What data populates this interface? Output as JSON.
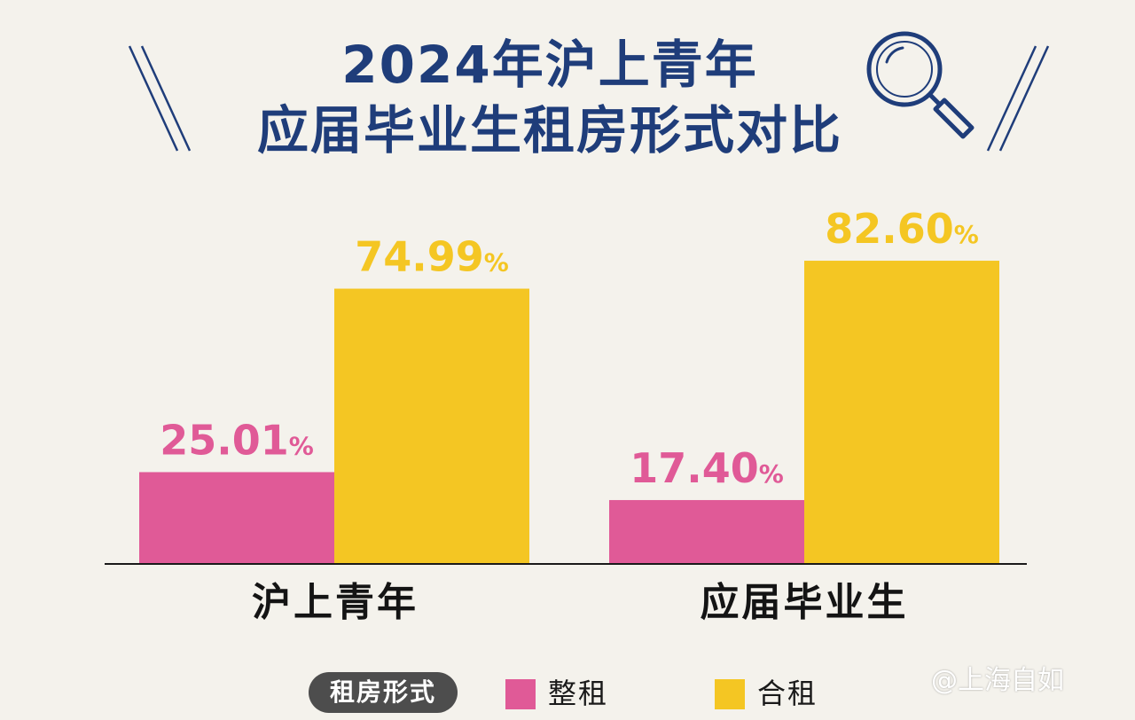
{
  "title": {
    "line1": "2024年沪上青年",
    "line2": "应届毕业生租房形式对比"
  },
  "colors": {
    "title": "#1f3d7a",
    "whole_rent": "#e05a97",
    "shared_rent": "#f4c623",
    "background": "#f4f2ec"
  },
  "icons": {
    "magnifier": "magnifier-icon"
  },
  "legend": {
    "title": "租房形式",
    "items": [
      {
        "label": "整租",
        "color": "#e05a97"
      },
      {
        "label": "合租",
        "color": "#f4c623"
      }
    ]
  },
  "watermark": "@上海自如",
  "chart_data": {
    "type": "bar",
    "title": "2024年沪上青年 应届毕业生租房形式对比",
    "categories": [
      "沪上青年",
      "应届毕业生"
    ],
    "series": [
      {
        "name": "整租",
        "values": [
          25.01,
          17.4
        ],
        "labels": [
          "25.01",
          "17.40"
        ],
        "color": "#e05a97"
      },
      {
        "name": "合租",
        "values": [
          74.99,
          82.6
        ],
        "labels": [
          "74.99",
          "82.60"
        ],
        "color": "#f4c623"
      }
    ],
    "unit": "%",
    "ylim": [
      0,
      100
    ],
    "grid": false,
    "legend_position": "bottom",
    "xlabel": "",
    "ylabel": ""
  }
}
